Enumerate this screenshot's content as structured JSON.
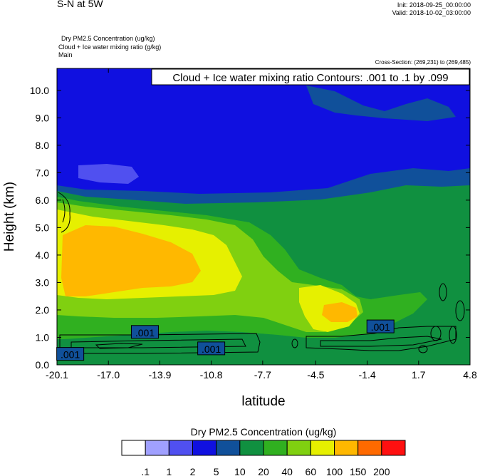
{
  "header": {
    "title": "S-N at 5W",
    "init": "Init: 2018-09-25_00:00:00",
    "valid": "Valid: 2018-10-02_03:00:00",
    "field_lines": [
      "Dry PM2.5 Concentration   (ug/kg)",
      "Cloud + Ice water mixing ratio   (g/kg)",
      "Main"
    ],
    "cross_section": "Cross-Section: (269,231) to (269,485)"
  },
  "chart_data": {
    "type": "heatmap",
    "title": "S-N at 5W",
    "xlabel": "latitude",
    "ylabel": "Height (km)",
    "xlim": [
      -20.1,
      4.8
    ],
    "ylim": [
      0.0,
      10.8
    ],
    "x_ticks": [
      -20.1,
      -17.0,
      -13.9,
      -10.8,
      -7.7,
      -4.5,
      -1.4,
      1.7,
      4.8
    ],
    "x_tick_labels": [
      "-20.1",
      "-17.0",
      "-13.9",
      "-10.8",
      "-7.7",
      "-4.5",
      "-1.4",
      "1.7",
      "4.8"
    ],
    "y_ticks": [
      0,
      1,
      2,
      3,
      4,
      5,
      6,
      7,
      8,
      9,
      10
    ],
    "y_tick_labels": [
      "0.0",
      "1.0",
      "2.0",
      "3.0",
      "4.0",
      "5.0",
      "6.0",
      "7.0",
      "8.0",
      "9.0",
      "10.0"
    ],
    "overlay_label": "Cloud + Ice water mixing ratio Contours: .001 to .1 by .099",
    "contour_labels": [
      {
        "text": ".001",
        "x": -19.3,
        "y": 0.4
      },
      {
        "text": ".001",
        "x": -14.8,
        "y": 1.2
      },
      {
        "text": ".001",
        "x": -10.8,
        "y": 0.6
      },
      {
        "text": ".001",
        "x": -0.6,
        "y": 1.4
      }
    ],
    "colorbar": {
      "title": "Dry PM2.5 Concentration  (ug/kg)",
      "levels": [
        ".1",
        "1",
        "2",
        "5",
        "10",
        "20",
        "40",
        "60",
        "100",
        "150",
        "200"
      ],
      "colors": [
        "#ffffff",
        "#a0a0ff",
        "#5050f0",
        "#1010e0",
        "#10509a",
        "#109040",
        "#30b020",
        "#80d010",
        "#e6f000",
        "#ffb800",
        "#ff6a00",
        "#ff1010"
      ]
    },
    "fill_colors": {
      "c2": "#5050f0",
      "c3": "#1010e0",
      "c4": "#10509a",
      "c5": "#109040",
      "c6": "#30b020",
      "c7": "#80d010",
      "c8": "#e6f000",
      "c9": "#ffb800"
    }
  }
}
